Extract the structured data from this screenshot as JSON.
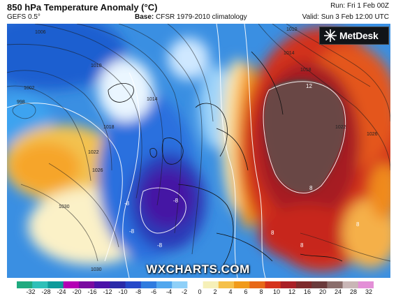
{
  "header": {
    "title": "850 hPa Temperature Anomaly (°C)",
    "model": "GEFS 0.5°",
    "base_label": "Base:",
    "base_value": "CFSR 1979-2010 climatology",
    "run": "Run: Fri 1 Feb 00Z",
    "valid": "Valid: Sun 3 Feb 12:00 UTC"
  },
  "logo": {
    "name": "MetDesk",
    "icon": "metdesk-star-icon"
  },
  "watermark": "WXCHARTS.COM",
  "map": {
    "contour_labels": [
      "998",
      "1002",
      "1006",
      "1010",
      "1014",
      "1018",
      "1022",
      "1026",
      "1030",
      "1010",
      "1014",
      "1018",
      "1022",
      "1026",
      "1030"
    ],
    "anomaly_labels": [
      "12",
      "8",
      "8",
      "-8",
      "-8",
      "-8",
      "-8",
      "8",
      "8"
    ]
  },
  "colorbar": {
    "ticks": [
      "-32",
      "-28",
      "-24",
      "-20",
      "-16",
      "-12",
      "-10",
      "-8",
      "-6",
      "-4",
      "-2",
      "0",
      "2",
      "4",
      "6",
      "8",
      "10",
      "12",
      "16",
      "20",
      "24",
      "28",
      "32"
    ],
    "colors": [
      "#1faa7f",
      "#2ec0b8",
      "#0e9a9a",
      "#b400b4",
      "#7a0aa0",
      "#4a12a8",
      "#2a2aa8",
      "#2548c8",
      "#2f7bdf",
      "#52a7ee",
      "#8fd0f8",
      "#ffffff",
      "#f6f0b8",
      "#f5c04a",
      "#f19a1a",
      "#e76818",
      "#d5321b",
      "#aa1f26",
      "#7e2a2c",
      "#6a3b3c",
      "#8a6e6c",
      "#c9b6b6",
      "#e38fd7"
    ]
  }
}
